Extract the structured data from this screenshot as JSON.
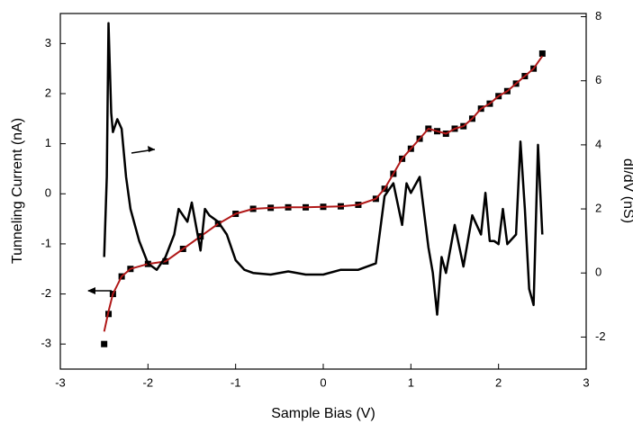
{
  "chart_data": {
    "type": "line",
    "xlabel": "Sample Bias (V)",
    "ylabel": "Tunneling Current (nA)",
    "y2label": "dI/dV (nS)",
    "xlim": [
      -3,
      3
    ],
    "xticks": [
      -3,
      -2,
      -1,
      0,
      1,
      2,
      3
    ],
    "ylim": [
      -3.5,
      3.6
    ],
    "yticks": [
      -3,
      -2,
      -1,
      0,
      1,
      2,
      3
    ],
    "y2lim": [
      -3,
      8.1
    ],
    "y2ticks": [
      -2,
      0,
      2,
      4,
      6,
      8
    ],
    "series": [
      {
        "color": "#000000",
        "marker": "square",
        "axis": "y",
        "x": [
          -2.5,
          -2.45,
          -2.4,
          -2.3,
          -2.2,
          -2.0,
          -1.8,
          -1.6,
          -1.4,
          -1.2,
          -1.0,
          -0.8,
          -0.6,
          -0.4,
          -0.2,
          0,
          0.2,
          0.4,
          0.6,
          0.7,
          0.8,
          0.9,
          1.0,
          1.1,
          1.2,
          1.3,
          1.4,
          1.5,
          1.6,
          1.7,
          1.8,
          1.9,
          2.0,
          2.1,
          2.2,
          2.3,
          2.4,
          2.5
        ],
        "values": [
          -3.0,
          -2.4,
          -2.0,
          -1.65,
          -1.5,
          -1.4,
          -1.35,
          -1.1,
          -0.85,
          -0.6,
          -0.4,
          -0.3,
          -0.28,
          -0.27,
          -0.27,
          -0.26,
          -0.25,
          -0.22,
          -0.1,
          0.1,
          0.4,
          0.7,
          0.9,
          1.1,
          1.3,
          1.25,
          1.2,
          1.3,
          1.35,
          1.5,
          1.7,
          1.8,
          1.95,
          2.05,
          2.2,
          2.35,
          2.5,
          2.8
        ]
      },
      {
        "color": "#b01818",
        "axis": "y",
        "x": [
          -2.5,
          -2.45,
          -2.4,
          -2.3,
          -2.2,
          -2.0,
          -1.8,
          -1.6,
          -1.4,
          -1.2,
          -1.0,
          -0.8,
          -0.6,
          -0.4,
          -0.2,
          0,
          0.2,
          0.4,
          0.6,
          0.7,
          0.8,
          0.9,
          1.0,
          1.1,
          1.2,
          1.3,
          1.4,
          1.5,
          1.6,
          1.7,
          1.8,
          1.9,
          2.0,
          2.1,
          2.2,
          2.3,
          2.4,
          2.5
        ],
        "values": [
          -2.75,
          -2.35,
          -2.0,
          -1.65,
          -1.5,
          -1.4,
          -1.35,
          -1.1,
          -0.85,
          -0.6,
          -0.4,
          -0.3,
          -0.28,
          -0.27,
          -0.27,
          -0.26,
          -0.25,
          -0.22,
          -0.1,
          0.1,
          0.4,
          0.7,
          0.9,
          1.1,
          1.3,
          1.25,
          1.2,
          1.3,
          1.35,
          1.5,
          1.7,
          1.8,
          1.95,
          2.05,
          2.2,
          2.35,
          2.5,
          2.75
        ]
      },
      {
        "color": "#000000",
        "axis": "y2",
        "x": [
          -2.5,
          -2.47,
          -2.45,
          -2.42,
          -2.4,
          -2.35,
          -2.3,
          -2.25,
          -2.2,
          -2.1,
          -2.0,
          -1.9,
          -1.8,
          -1.7,
          -1.65,
          -1.55,
          -1.5,
          -1.4,
          -1.35,
          -1.3,
          -1.2,
          -1.1,
          -1.0,
          -0.9,
          -0.8,
          -0.6,
          -0.4,
          -0.2,
          0,
          0.2,
          0.4,
          0.6,
          0.7,
          0.8,
          0.9,
          0.95,
          1.0,
          1.1,
          1.2,
          1.25,
          1.3,
          1.35,
          1.4,
          1.5,
          1.6,
          1.7,
          1.8,
          1.85,
          1.9,
          1.95,
          2.0,
          2.05,
          2.1,
          2.2,
          2.25,
          2.3,
          2.35,
          2.4,
          2.45,
          2.5
        ],
        "values": [
          0.5,
          3,
          7.8,
          5,
          4.4,
          4.8,
          4.5,
          3,
          2,
          1,
          0.3,
          0.1,
          0.5,
          1.2,
          2,
          1.6,
          2.2,
          0.7,
          2,
          1.8,
          1.6,
          1.2,
          0.4,
          0.1,
          0,
          -0.05,
          0.05,
          -0.05,
          -0.05,
          0.1,
          0.1,
          0.3,
          2.4,
          2.8,
          1.5,
          2.8,
          2.5,
          3,
          0.8,
          0,
          -1.3,
          0.5,
          0,
          1.5,
          0.2,
          1.8,
          1.2,
          2.5,
          1,
          1,
          0.9,
          2,
          0.9,
          1.2,
          4.1,
          2,
          -0.5,
          -1,
          4.0,
          1.2
        ]
      }
    ]
  }
}
